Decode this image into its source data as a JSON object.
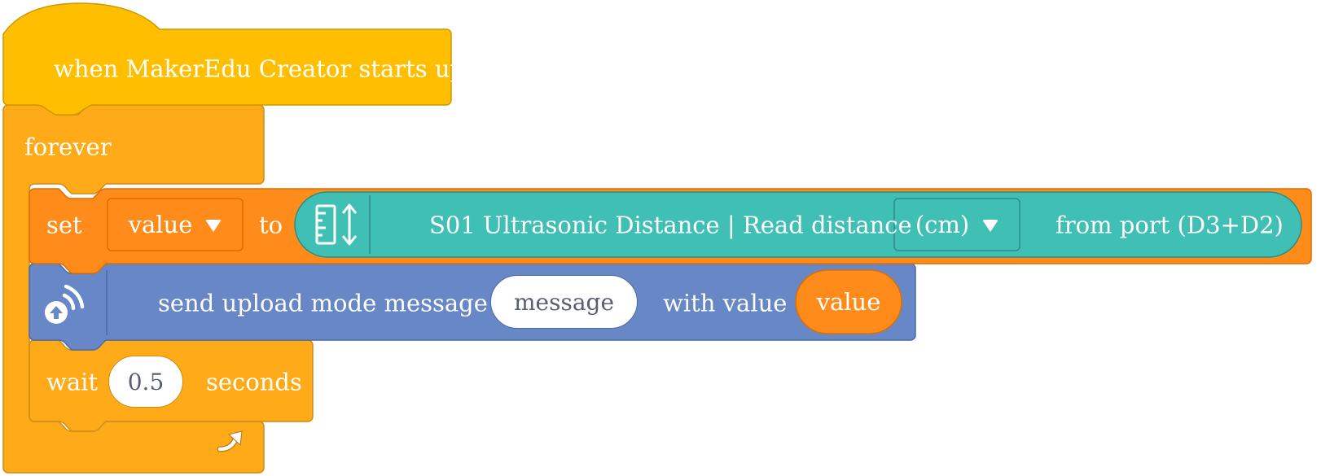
{
  "hat": {
    "label": "when MakerEdu Creator starts up"
  },
  "forever": {
    "label": "forever",
    "loop_icon": "loop-arrow-icon"
  },
  "set_block": {
    "set_label": "set",
    "variable": "value",
    "to_label": "to",
    "sensor": {
      "icon": "ruler-distance-icon",
      "label": "S01 Ultrasonic Distance | Read distance",
      "unit": "(cm)",
      "port_label": "from port (D3+D2)"
    }
  },
  "upload_block": {
    "icon": "upload-wifi-icon",
    "label": "send upload mode message",
    "message_value": "message",
    "with_value_label": "with value",
    "value_reporter": "value"
  },
  "wait_block": {
    "wait_label": "wait",
    "seconds_value": "0.5",
    "seconds_label": "seconds"
  },
  "colors": {
    "events": "#ffbf00",
    "control": "#ffab19",
    "variables": "#ff8c1a",
    "sensor": "#40bfb5",
    "upload": "#6787c6"
  }
}
